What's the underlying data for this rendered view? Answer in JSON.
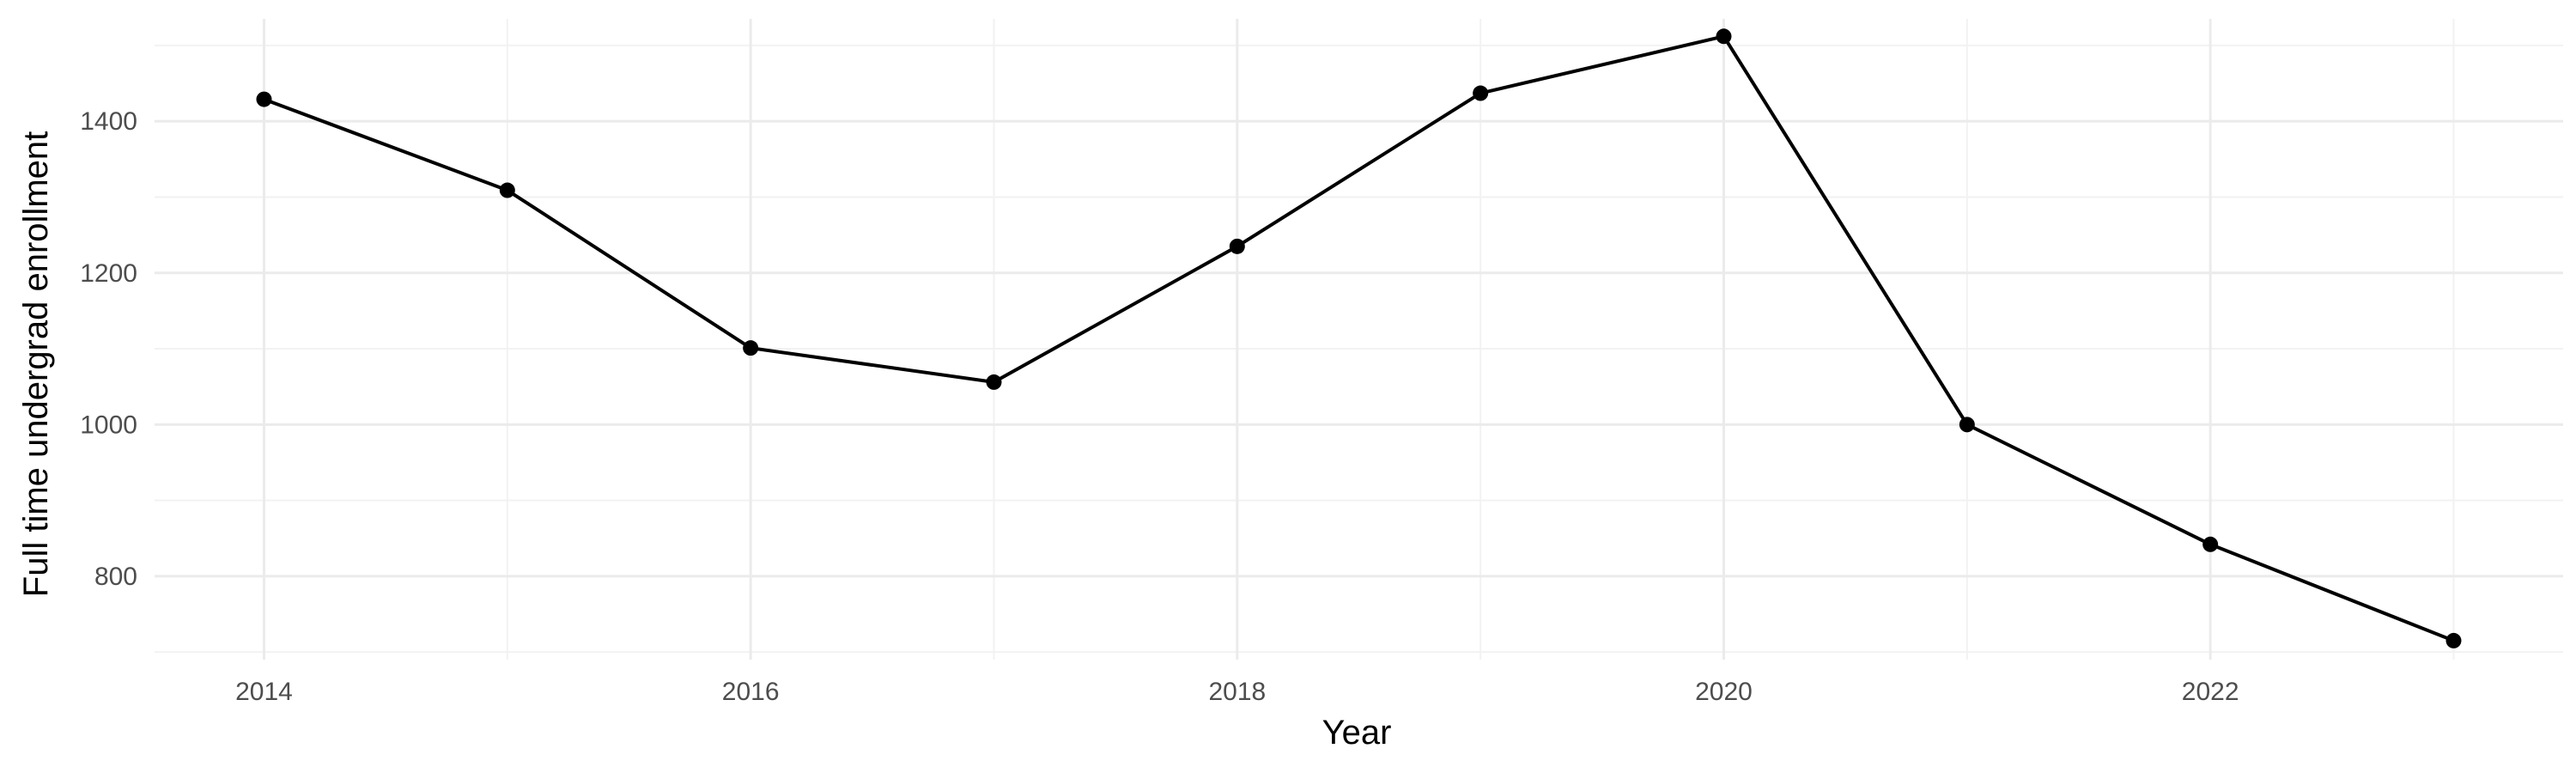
{
  "chart_data": {
    "type": "line",
    "title": "",
    "xlabel": "Year",
    "ylabel": "Full time undergrad enrollment",
    "x": [
      2014,
      2015,
      2016,
      2017,
      2018,
      2019,
      2020,
      2021,
      2022,
      2023
    ],
    "series": [
      {
        "values": [
          1429,
          1309,
          1101,
          1056,
          1235,
          1437,
          1512,
          1000,
          842,
          715
        ]
      }
    ],
    "xlim": [
      2013.55,
      2023.45
    ],
    "ylim": [
      690,
      1535
    ],
    "x_ticks": [
      2014,
      2016,
      2018,
      2020,
      2022
    ],
    "y_ticks": [
      800,
      1000,
      1200,
      1400
    ],
    "x_minor_ticks": [
      2015,
      2017,
      2019,
      2021,
      2023
    ],
    "y_minor_ticks": [
      700,
      900,
      1100,
      1300,
      1500
    ],
    "grid": true,
    "legend": "none",
    "colors": {
      "line": "#000000",
      "point": "#000000",
      "grid_major": "#ebebeb",
      "grid_minor": "#f2f2f2",
      "tick_label": "#4d4d4d"
    }
  }
}
